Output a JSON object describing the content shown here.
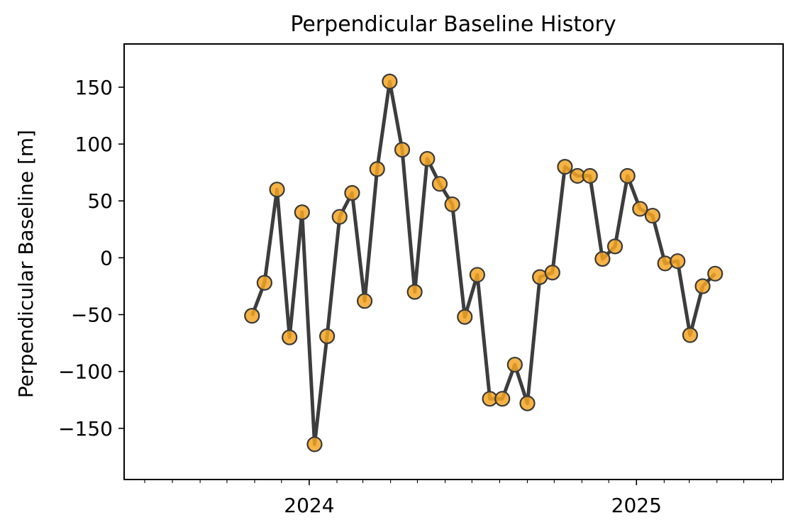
{
  "chart_data": {
    "type": "line",
    "title": "Perpendicular Baseline History",
    "xlabel": "",
    "ylabel": "Perpendicular Baseline [m]",
    "ylim": [
      -195,
      188
    ],
    "xlim": [
      "2023-06-08",
      "2025-06-14"
    ],
    "x_tick_labels": [
      "2024",
      "2025"
    ],
    "y_ticks": [
      150,
      100,
      50,
      0,
      -50,
      -100,
      -150
    ],
    "y_tick_labels": [
      "150",
      "100",
      "50",
      "0",
      "−50",
      "−100",
      "−150"
    ],
    "grid": false,
    "series": [
      {
        "line_color": "#3d3d3d",
        "marker_color": "#f5a623",
        "marker_edge_color": "#3a3a3a",
        "dates": [
          "2023-10-29",
          "2023-11-12",
          "2023-11-26",
          "2023-12-10",
          "2023-12-24",
          "2024-01-07",
          "2024-01-21",
          "2024-02-04",
          "2024-02-18",
          "2024-03-03",
          "2024-03-17",
          "2024-03-31",
          "2024-04-14",
          "2024-04-28",
          "2024-05-12",
          "2024-05-26",
          "2024-06-09",
          "2024-06-23",
          "2024-07-07",
          "2024-07-21",
          "2024-08-04",
          "2024-08-18",
          "2024-09-01",
          "2024-09-15",
          "2024-09-29",
          "2024-10-13",
          "2024-10-27",
          "2024-11-10",
          "2024-11-24",
          "2024-12-08",
          "2024-12-22",
          "2025-01-05",
          "2025-01-19",
          "2025-02-02",
          "2025-02-16",
          "2025-03-02",
          "2025-03-16",
          "2025-03-30",
          "2025-04-13"
        ],
        "values": [
          -51,
          -22,
          60,
          -70,
          40,
          -164,
          -69,
          36,
          57,
          -38,
          78,
          155,
          95,
          -30,
          87,
          65,
          47,
          -52,
          -15,
          -124,
          -124,
          -94,
          -128,
          -17,
          -13,
          80,
          72,
          72,
          -1,
          10,
          72,
          43,
          37,
          -5,
          -3,
          -68,
          -25,
          -14,
          null
        ]
      }
    ]
  }
}
